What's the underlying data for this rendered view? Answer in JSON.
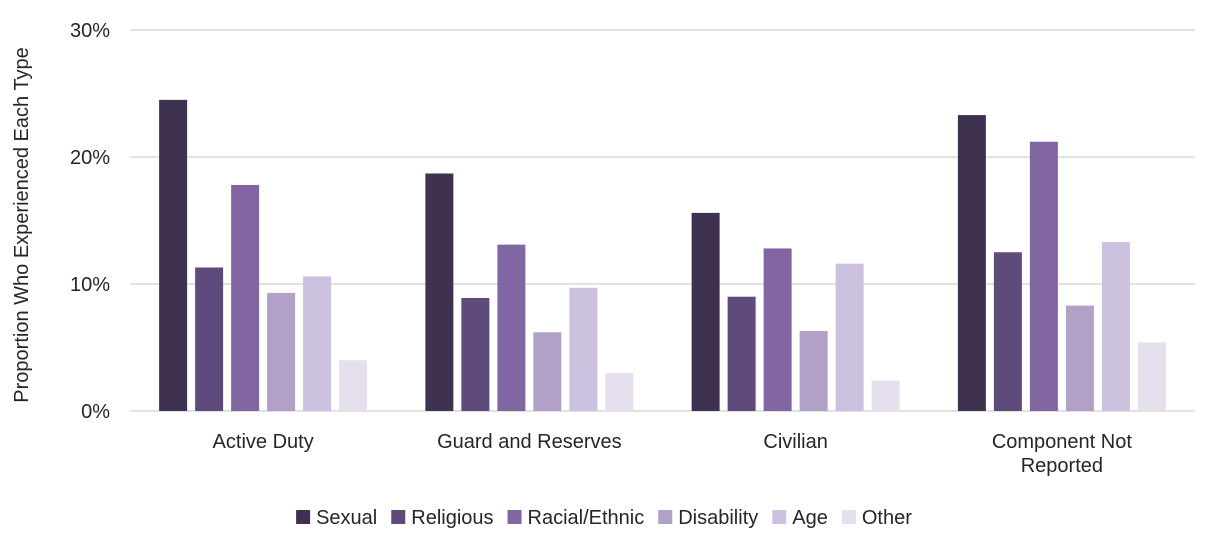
{
  "chart_data": {
    "type": "bar",
    "title": "",
    "ylabel": "Proportion Who Experienced Each Type",
    "xlabel": "",
    "ylim": [
      0,
      30
    ],
    "yticks": [
      "0%",
      "10%",
      "20%",
      "30%"
    ],
    "grid": true,
    "legend_position": "bottom",
    "categories": [
      [
        "Active Duty"
      ],
      [
        "Guard and Reserves"
      ],
      [
        "Civilian"
      ],
      [
        "Component Not",
        "Reported"
      ]
    ],
    "series": [
      {
        "name": "Sexual",
        "color": "#3f3150",
        "values": [
          24.5,
          18.7,
          15.6,
          23.3
        ]
      },
      {
        "name": "Religious",
        "color": "#5f4b7b",
        "values": [
          11.3,
          8.9,
          9.0,
          12.5
        ]
      },
      {
        "name": "Racial/Ethnic",
        "color": "#8265a3",
        "values": [
          17.8,
          13.1,
          12.8,
          21.2
        ]
      },
      {
        "name": "Disability",
        "color": "#b2a1c7",
        "values": [
          9.3,
          6.2,
          6.3,
          8.3
        ]
      },
      {
        "name": "Age",
        "color": "#ccc1de",
        "values": [
          10.6,
          9.7,
          11.6,
          13.3
        ]
      },
      {
        "name": "Other",
        "color": "#e6dfee",
        "values": [
          4.0,
          3.0,
          2.4,
          5.4
        ]
      }
    ]
  }
}
